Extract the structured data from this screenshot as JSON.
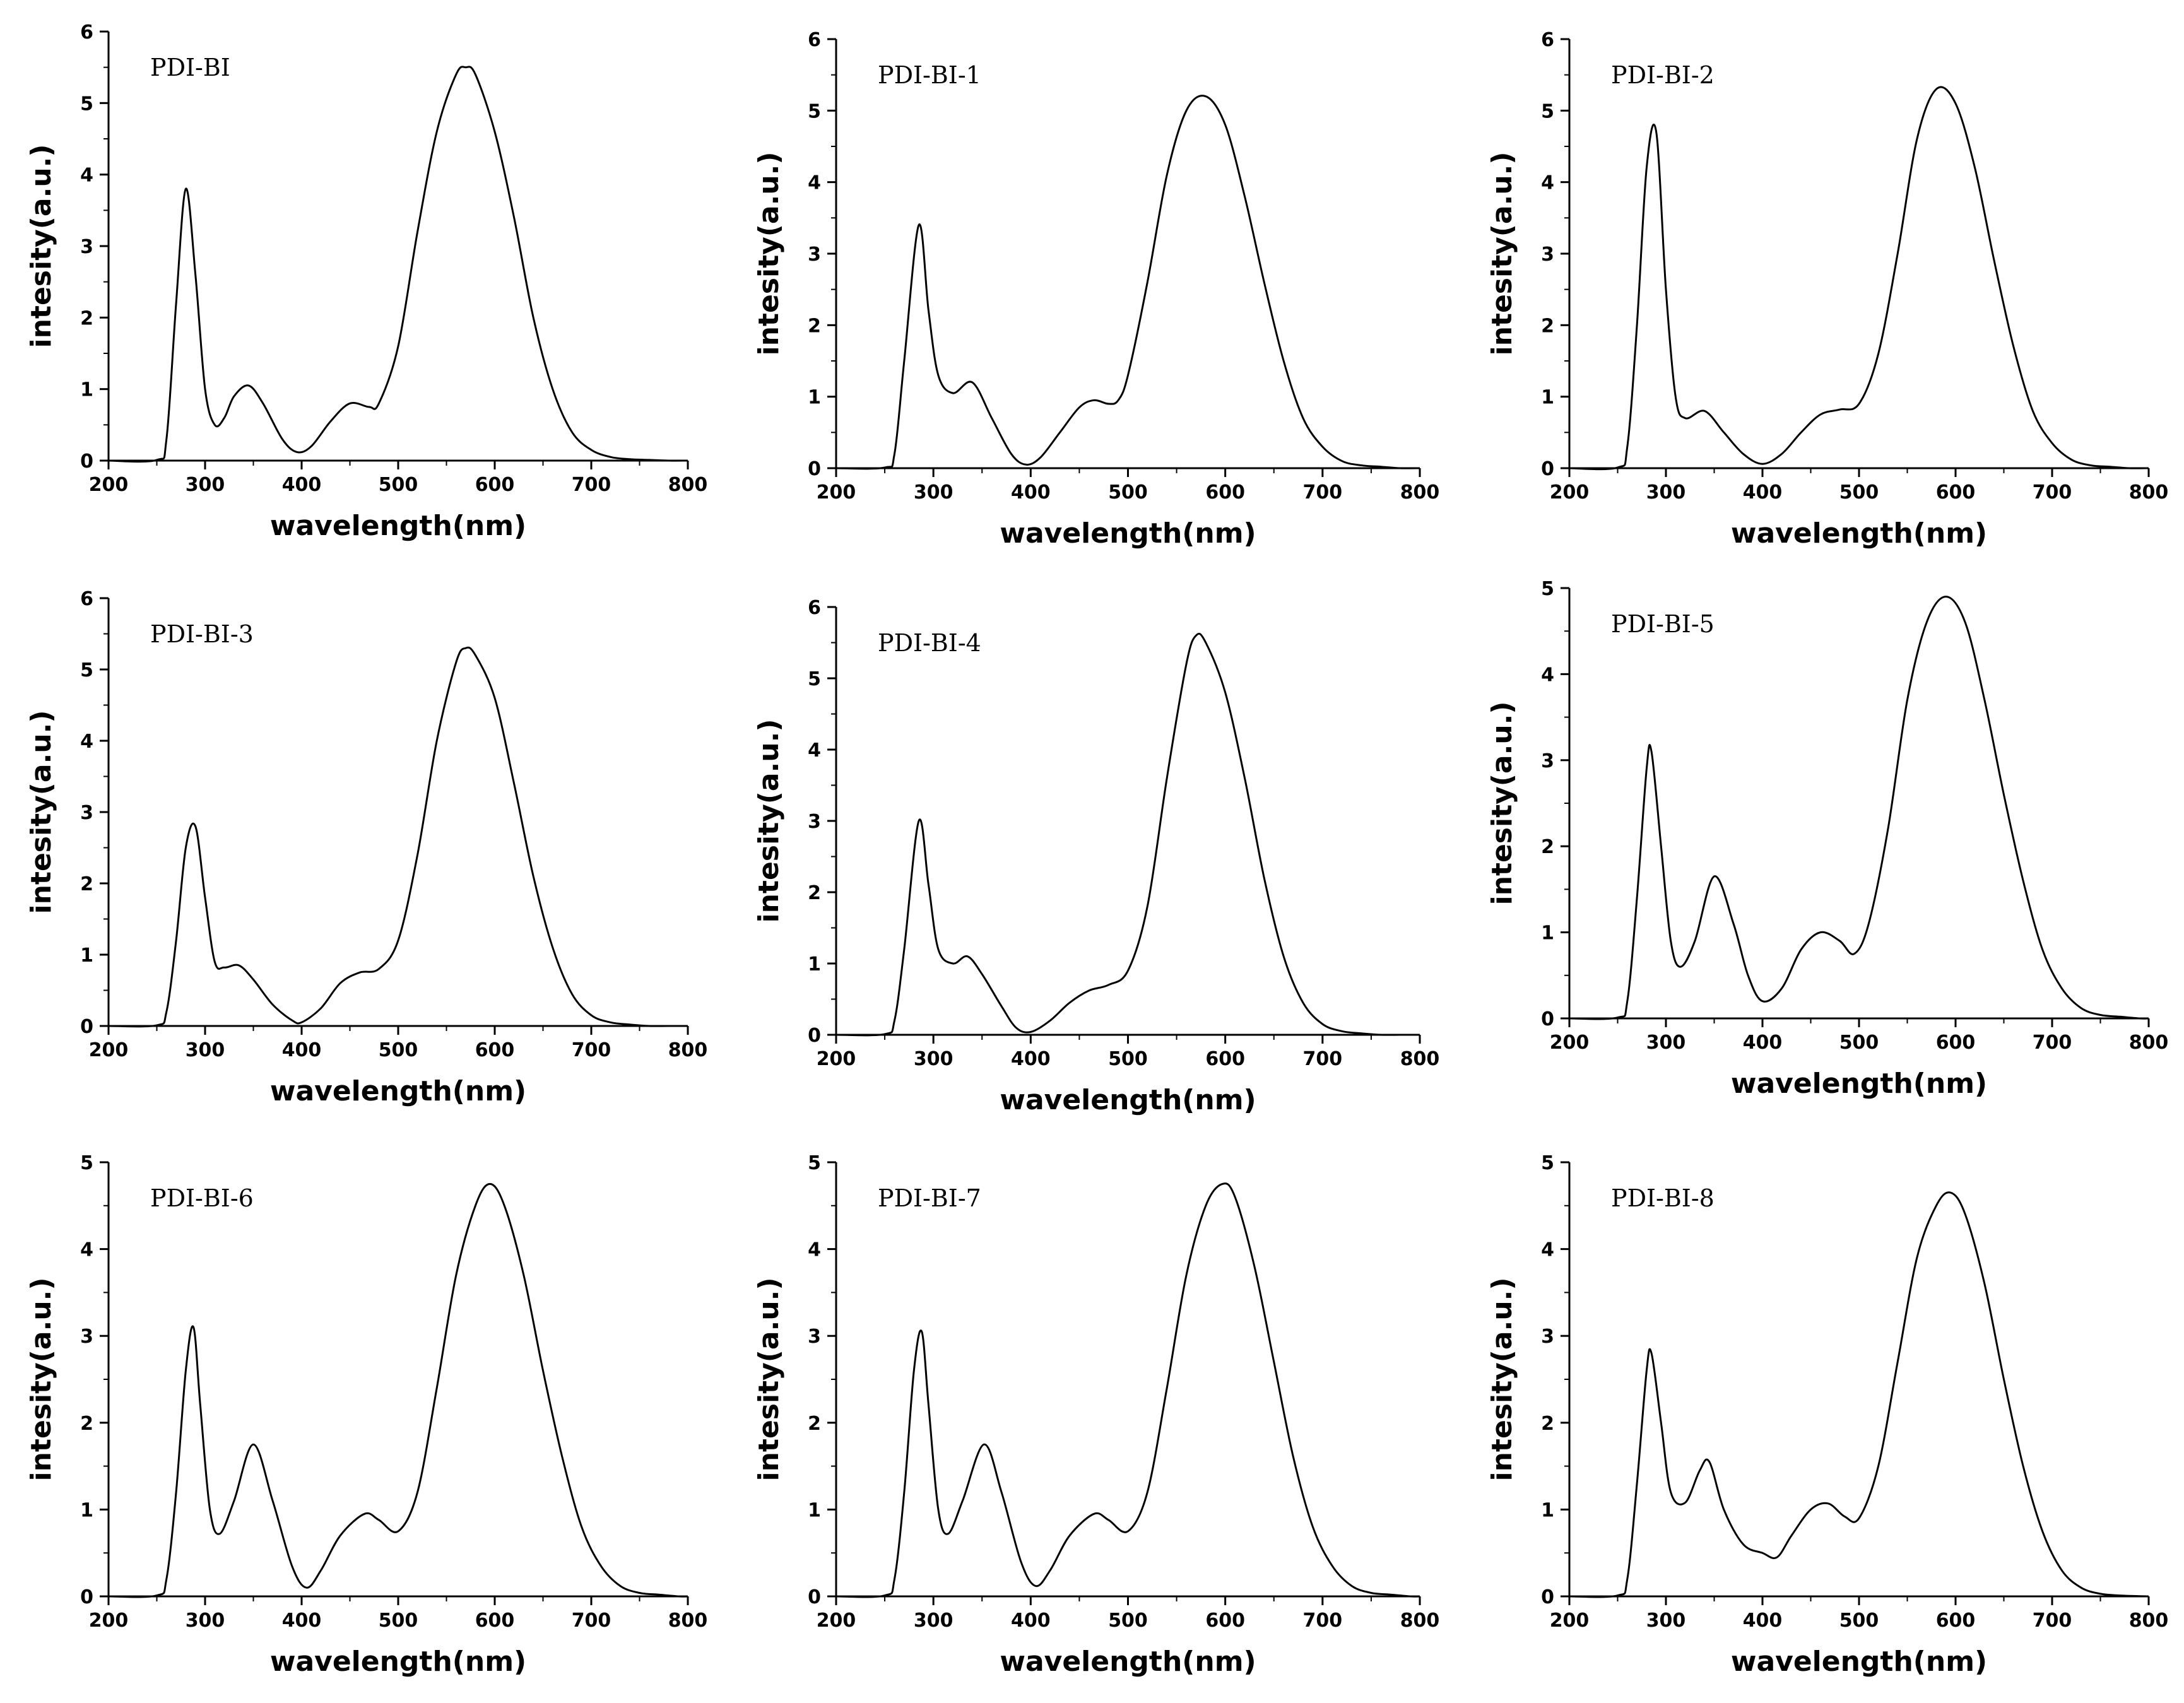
{
  "chart_data": [
    {
      "type": "line",
      "title": "PDI-BI",
      "xlabel": "wavelength(nm)",
      "ylabel": "intesity(a.u.)",
      "xlim": [
        200,
        800
      ],
      "ylim": [
        0,
        6
      ],
      "xticks": [
        200,
        300,
        400,
        500,
        600,
        700,
        800
      ],
      "yticks": [
        0,
        1,
        2,
        3,
        4,
        5,
        6
      ],
      "x": [
        200,
        250,
        260,
        270,
        280,
        290,
        300,
        310,
        320,
        330,
        345,
        360,
        380,
        395,
        410,
        430,
        450,
        470,
        480,
        500,
        520,
        540,
        560,
        570,
        580,
        600,
        620,
        640,
        660,
        680,
        700,
        720,
        740,
        760,
        780,
        800
      ],
      "series": [
        {
          "name": "PDI-BI",
          "values": [
            0,
            0.01,
            0.3,
            2.2,
            3.8,
            2.6,
            1.0,
            0.5,
            0.6,
            0.9,
            1.05,
            0.8,
            0.3,
            0.12,
            0.2,
            0.55,
            0.8,
            0.75,
            0.8,
            1.6,
            3.2,
            4.6,
            5.4,
            5.5,
            5.4,
            4.6,
            3.4,
            2.0,
            1.0,
            0.4,
            0.15,
            0.05,
            0.02,
            0.01,
            0,
            0
          ]
        }
      ]
    },
    {
      "type": "line",
      "title": "PDI-BI-1",
      "xlabel": "wavelength(nm)",
      "ylabel": "intesity(a.u.)",
      "xlim": [
        200,
        800
      ],
      "ylim": [
        0,
        6
      ],
      "xticks": [
        200,
        300,
        400,
        500,
        600,
        700,
        800
      ],
      "yticks": [
        0,
        1,
        2,
        3,
        4,
        5,
        6
      ],
      "x": [
        200,
        250,
        260,
        270,
        285,
        295,
        305,
        320,
        340,
        360,
        380,
        395,
        410,
        430,
        450,
        465,
        480,
        490,
        500,
        520,
        540,
        560,
        580,
        600,
        620,
        640,
        660,
        680,
        700,
        720,
        740,
        760,
        780,
        800
      ],
      "series": [
        {
          "name": "PDI-BI-1",
          "values": [
            0,
            0.01,
            0.2,
            1.5,
            3.4,
            2.2,
            1.3,
            1.05,
            1.2,
            0.7,
            0.2,
            0.05,
            0.15,
            0.5,
            0.85,
            0.95,
            0.9,
            0.95,
            1.3,
            2.6,
            4.1,
            5.0,
            5.2,
            4.8,
            3.8,
            2.6,
            1.5,
            0.7,
            0.3,
            0.1,
            0.04,
            0.02,
            0,
            0
          ]
        }
      ]
    },
    {
      "type": "line",
      "title": "PDI-BI-2",
      "xlabel": "wavelength(nm)",
      "ylabel": "intesity(a.u.)",
      "xlim": [
        200,
        800
      ],
      "ylim": [
        0,
        6
      ],
      "xticks": [
        200,
        300,
        400,
        500,
        600,
        700,
        800
      ],
      "yticks": [
        0,
        1,
        2,
        3,
        4,
        5,
        6
      ],
      "x": [
        200,
        250,
        260,
        270,
        280,
        290,
        300,
        310,
        320,
        340,
        360,
        380,
        400,
        420,
        440,
        460,
        480,
        500,
        520,
        540,
        560,
        580,
        600,
        620,
        640,
        660,
        680,
        700,
        720,
        740,
        760,
        780,
        800
      ],
      "series": [
        {
          "name": "PDI-BI-2",
          "values": [
            0,
            0.01,
            0.3,
            2.0,
            4.2,
            4.7,
            2.5,
            1.0,
            0.7,
            0.8,
            0.5,
            0.2,
            0.06,
            0.2,
            0.5,
            0.75,
            0.82,
            0.9,
            1.6,
            3.0,
            4.6,
            5.3,
            5.1,
            4.2,
            2.9,
            1.7,
            0.8,
            0.35,
            0.12,
            0.04,
            0.02,
            0,
            0
          ]
        }
      ]
    },
    {
      "type": "line",
      "title": "PDI-BI-3",
      "xlabel": "wavelength(nm)",
      "ylabel": "intesity(a.u.)",
      "xlim": [
        200,
        800
      ],
      "ylim": [
        0,
        6
      ],
      "xticks": [
        200,
        300,
        400,
        500,
        600,
        700,
        800
      ],
      "yticks": [
        0,
        1,
        2,
        3,
        4,
        5,
        6
      ],
      "x": [
        200,
        250,
        260,
        270,
        280,
        290,
        300,
        310,
        320,
        335,
        350,
        370,
        390,
        400,
        420,
        440,
        460,
        480,
        500,
        520,
        540,
        560,
        570,
        580,
        600,
        620,
        640,
        660,
        680,
        700,
        720,
        740,
        760,
        780,
        800
      ],
      "series": [
        {
          "name": "PDI-BI-3",
          "values": [
            0,
            0.01,
            0.2,
            1.2,
            2.5,
            2.8,
            1.8,
            0.9,
            0.82,
            0.85,
            0.65,
            0.3,
            0.08,
            0.05,
            0.25,
            0.6,
            0.75,
            0.8,
            1.2,
            2.4,
            4.0,
            5.1,
            5.3,
            5.2,
            4.6,
            3.4,
            2.1,
            1.1,
            0.45,
            0.15,
            0.05,
            0.02,
            0,
            0,
            0
          ]
        }
      ]
    },
    {
      "type": "line",
      "title": "PDI-BI-4",
      "xlabel": "wavelength(nm)",
      "ylabel": "intesity(a.u.)",
      "xlim": [
        200,
        800
      ],
      "ylim": [
        0,
        6
      ],
      "xticks": [
        200,
        300,
        400,
        500,
        600,
        700,
        800
      ],
      "yticks": [
        0,
        1,
        2,
        3,
        4,
        5,
        6
      ],
      "x": [
        200,
        250,
        260,
        270,
        285,
        295,
        305,
        320,
        335,
        350,
        370,
        385,
        400,
        420,
        440,
        460,
        480,
        500,
        520,
        540,
        560,
        570,
        580,
        600,
        620,
        640,
        660,
        680,
        700,
        720,
        740,
        760,
        780,
        800
      ],
      "series": [
        {
          "name": "PDI-BI-4",
          "values": [
            0,
            0.01,
            0.2,
            1.2,
            3.0,
            2.1,
            1.2,
            1.0,
            1.1,
            0.85,
            0.4,
            0.1,
            0.04,
            0.2,
            0.45,
            0.62,
            0.7,
            0.9,
            1.8,
            3.6,
            5.2,
            5.6,
            5.5,
            4.8,
            3.6,
            2.2,
            1.1,
            0.45,
            0.15,
            0.05,
            0.02,
            0,
            0,
            0
          ]
        }
      ]
    },
    {
      "type": "line",
      "title": "PDI-BI-5",
      "xlabel": "wavelength(nm)",
      "ylabel": "intesity(a.u.)",
      "xlim": [
        200,
        800
      ],
      "ylim": [
        0,
        5
      ],
      "xticks": [
        200,
        300,
        400,
        500,
        600,
        700,
        800
      ],
      "yticks": [
        0,
        1,
        2,
        3,
        4,
        5
      ],
      "x": [
        200,
        250,
        260,
        270,
        280,
        285,
        295,
        305,
        315,
        330,
        350,
        370,
        385,
        400,
        420,
        440,
        460,
        480,
        495,
        510,
        530,
        550,
        570,
        590,
        610,
        630,
        650,
        670,
        690,
        710,
        730,
        750,
        770,
        790,
        800
      ],
      "series": [
        {
          "name": "PDI-BI-5",
          "values": [
            0,
            0.01,
            0.2,
            1.4,
            2.9,
            3.1,
            2.0,
            0.9,
            0.6,
            0.9,
            1.65,
            1.1,
            0.5,
            0.2,
            0.35,
            0.8,
            1.0,
            0.9,
            0.75,
            1.1,
            2.2,
            3.7,
            4.6,
            4.9,
            4.6,
            3.7,
            2.6,
            1.6,
            0.8,
            0.35,
            0.12,
            0.04,
            0.02,
            0,
            0
          ]
        }
      ]
    },
    {
      "type": "line",
      "title": "PDI-BI-6",
      "xlabel": "wavelength(nm)",
      "ylabel": "intesity(a.u.)",
      "xlim": [
        200,
        800
      ],
      "ylim": [
        0,
        5
      ],
      "xticks": [
        200,
        300,
        400,
        500,
        600,
        700,
        800
      ],
      "yticks": [
        0,
        1,
        2,
        3,
        4,
        5
      ],
      "x": [
        200,
        250,
        260,
        270,
        280,
        288,
        295,
        305,
        315,
        330,
        350,
        370,
        390,
        405,
        420,
        440,
        465,
        480,
        500,
        520,
        540,
        560,
        580,
        595,
        610,
        630,
        650,
        670,
        690,
        710,
        730,
        750,
        770,
        790,
        800
      ],
      "series": [
        {
          "name": "PDI-BI-6",
          "values": [
            0,
            0.01,
            0.2,
            1.2,
            2.6,
            3.1,
            2.2,
            1.0,
            0.72,
            1.1,
            1.75,
            1.1,
            0.35,
            0.1,
            0.3,
            0.7,
            0.95,
            0.88,
            0.75,
            1.2,
            2.4,
            3.7,
            4.5,
            4.75,
            4.5,
            3.7,
            2.6,
            1.6,
            0.8,
            0.35,
            0.12,
            0.04,
            0.02,
            0,
            0
          ]
        }
      ]
    },
    {
      "type": "line",
      "title": "PDI-BI-7",
      "xlabel": "wavelength(nm)",
      "ylabel": "intesity(a.u.)",
      "xlim": [
        200,
        800
      ],
      "ylim": [
        0,
        5
      ],
      "xticks": [
        200,
        300,
        400,
        500,
        600,
        700,
        800
      ],
      "yticks": [
        0,
        1,
        2,
        3,
        4,
        5
      ],
      "x": [
        200,
        250,
        260,
        270,
        280,
        288,
        295,
        305,
        315,
        330,
        352,
        370,
        390,
        405,
        420,
        440,
        465,
        480,
        500,
        520,
        540,
        560,
        580,
        597,
        610,
        630,
        650,
        670,
        690,
        710,
        730,
        750,
        770,
        790,
        800
      ],
      "series": [
        {
          "name": "PDI-BI-7",
          "values": [
            0,
            0.01,
            0.2,
            1.2,
            2.6,
            3.05,
            2.2,
            1.0,
            0.72,
            1.1,
            1.75,
            1.2,
            0.4,
            0.12,
            0.3,
            0.7,
            0.95,
            0.88,
            0.75,
            1.2,
            2.4,
            3.7,
            4.5,
            4.75,
            4.6,
            3.8,
            2.7,
            1.6,
            0.8,
            0.35,
            0.12,
            0.04,
            0.02,
            0,
            0
          ]
        }
      ]
    },
    {
      "type": "line",
      "title": "PDI-BI-8",
      "xlabel": "wavelength(nm)",
      "ylabel": "intesity(a.u.)",
      "xlim": [
        200,
        800
      ],
      "ylim": [
        0,
        5
      ],
      "xticks": [
        200,
        300,
        400,
        500,
        600,
        700,
        800
      ],
      "yticks": [
        0,
        1,
        2,
        3,
        4,
        5
      ],
      "x": [
        200,
        250,
        260,
        270,
        280,
        285,
        295,
        305,
        320,
        335,
        345,
        360,
        380,
        400,
        415,
        430,
        450,
        468,
        485,
        500,
        520,
        540,
        560,
        580,
        595,
        610,
        630,
        650,
        670,
        690,
        710,
        730,
        750,
        770,
        800
      ],
      "series": [
        {
          "name": "PDI-BI-8",
          "values": [
            0,
            0.01,
            0.2,
            1.3,
            2.6,
            2.8,
            2.0,
            1.2,
            1.08,
            1.45,
            1.55,
            1.0,
            0.6,
            0.5,
            0.45,
            0.7,
            1.0,
            1.07,
            0.92,
            0.9,
            1.5,
            2.7,
            3.9,
            4.5,
            4.65,
            4.4,
            3.6,
            2.5,
            1.5,
            0.75,
            0.3,
            0.1,
            0.03,
            0.01,
            0
          ]
        }
      ]
    }
  ]
}
